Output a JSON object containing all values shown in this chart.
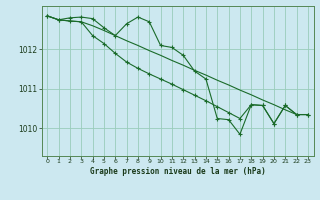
{
  "title": "Graphe pression niveau de la mer (hPa)",
  "bg_color": "#cce8f0",
  "grid_color": "#99ccbb",
  "line_color": "#1a6b2a",
  "xlim": [
    -0.5,
    23.5
  ],
  "ylim": [
    1009.3,
    1013.1
  ],
  "yticks": [
    1010,
    1011,
    1012
  ],
  "xticks": [
    0,
    1,
    2,
    3,
    4,
    5,
    6,
    7,
    8,
    9,
    10,
    11,
    12,
    13,
    14,
    15,
    16,
    17,
    18,
    19,
    20,
    21,
    22,
    23
  ],
  "series1_jagged": [
    [
      0,
      1012.85
    ],
    [
      1,
      1012.75
    ],
    [
      2,
      1012.8
    ],
    [
      3,
      1012.82
    ],
    [
      4,
      1012.78
    ],
    [
      5,
      1012.55
    ],
    [
      6,
      1012.35
    ],
    [
      7,
      1012.65
    ],
    [
      8,
      1012.82
    ],
    [
      9,
      1012.7
    ],
    [
      10,
      1012.1
    ],
    [
      11,
      1012.05
    ],
    [
      12,
      1011.85
    ],
    [
      13,
      1011.45
    ],
    [
      14,
      1011.25
    ],
    [
      15,
      1010.25
    ],
    [
      16,
      1010.22
    ],
    [
      17,
      1009.85
    ],
    [
      18,
      1010.6
    ],
    [
      19,
      1010.58
    ],
    [
      20,
      1010.12
    ],
    [
      21,
      1010.58
    ],
    [
      22,
      1010.35
    ],
    [
      23,
      1010.35
    ]
  ],
  "series2_diagonal": [
    [
      0,
      1012.85
    ],
    [
      1,
      1012.75
    ],
    [
      2,
      1012.72
    ],
    [
      3,
      1012.7
    ],
    [
      4,
      1012.35
    ],
    [
      5,
      1012.15
    ],
    [
      6,
      1011.9
    ],
    [
      7,
      1011.68
    ],
    [
      8,
      1011.52
    ],
    [
      9,
      1011.38
    ],
    [
      10,
      1011.25
    ],
    [
      11,
      1011.12
    ],
    [
      12,
      1010.98
    ],
    [
      13,
      1010.84
    ],
    [
      14,
      1010.7
    ],
    [
      15,
      1010.55
    ],
    [
      16,
      1010.4
    ],
    [
      17,
      1010.25
    ],
    [
      18,
      1010.6
    ],
    [
      19,
      1010.58
    ],
    [
      20,
      1010.12
    ],
    [
      21,
      1010.58
    ],
    [
      22,
      1010.35
    ],
    [
      23,
      1010.35
    ]
  ],
  "series3_trend": [
    [
      0,
      1012.85
    ],
    [
      1,
      1012.75
    ],
    [
      2,
      1012.72
    ],
    [
      3,
      1012.7
    ],
    [
      4,
      1012.6
    ],
    [
      5,
      1012.48
    ],
    [
      6,
      1012.35
    ],
    [
      7,
      1012.22
    ],
    [
      8,
      1012.1
    ],
    [
      9,
      1011.97
    ],
    [
      10,
      1011.85
    ],
    [
      11,
      1011.72
    ],
    [
      12,
      1011.6
    ],
    [
      13,
      1011.47
    ],
    [
      14,
      1011.35
    ],
    [
      15,
      1011.22
    ],
    [
      16,
      1011.1
    ],
    [
      17,
      1010.97
    ],
    [
      18,
      1010.85
    ],
    [
      19,
      1010.72
    ],
    [
      20,
      1010.6
    ],
    [
      21,
      1010.47
    ],
    [
      22,
      1010.35
    ],
    [
      23,
      1010.35
    ]
  ]
}
